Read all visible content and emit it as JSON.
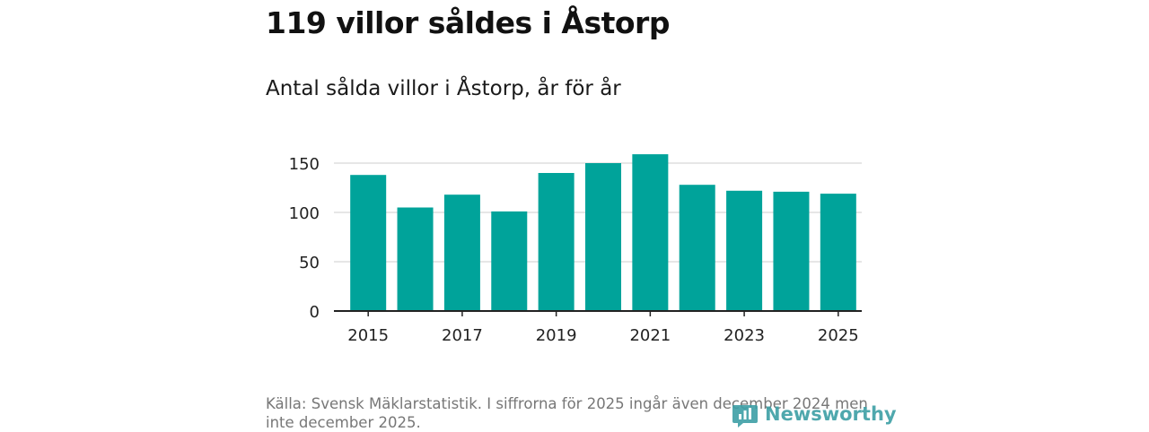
{
  "header": {
    "title": "119 villor såldes i Åstorp",
    "subtitle": "Antal sålda villor i Åstorp, år för år"
  },
  "footer": {
    "source": "Källa: Svensk Mäklarstatistik. I siffrorna för 2025 ingår även december 2024 men inte december 2025.",
    "brand": "Newsworthy",
    "brand_icon": "newsworthy-logo-icon",
    "brand_color": "#3d9fa5"
  },
  "chart_data": {
    "type": "bar",
    "title": "Antal sålda villor i Åstorp, år för år",
    "xlabel": "",
    "ylabel": "",
    "categories": [
      "2015",
      "2016",
      "2017",
      "2018",
      "2019",
      "2020",
      "2021",
      "2022",
      "2023",
      "2024",
      "2025"
    ],
    "values": [
      138,
      105,
      118,
      101,
      140,
      150,
      159,
      128,
      122,
      121,
      119
    ],
    "x_tick_labels": [
      "2015",
      "2017",
      "2019",
      "2021",
      "2023",
      "2025"
    ],
    "y_ticks": [
      0,
      50,
      100,
      150
    ],
    "ylim": [
      0,
      160
    ],
    "grid": true,
    "bar_color": "#00a39a",
    "grid_color": "#dddddd",
    "axis_color": "#222222"
  }
}
